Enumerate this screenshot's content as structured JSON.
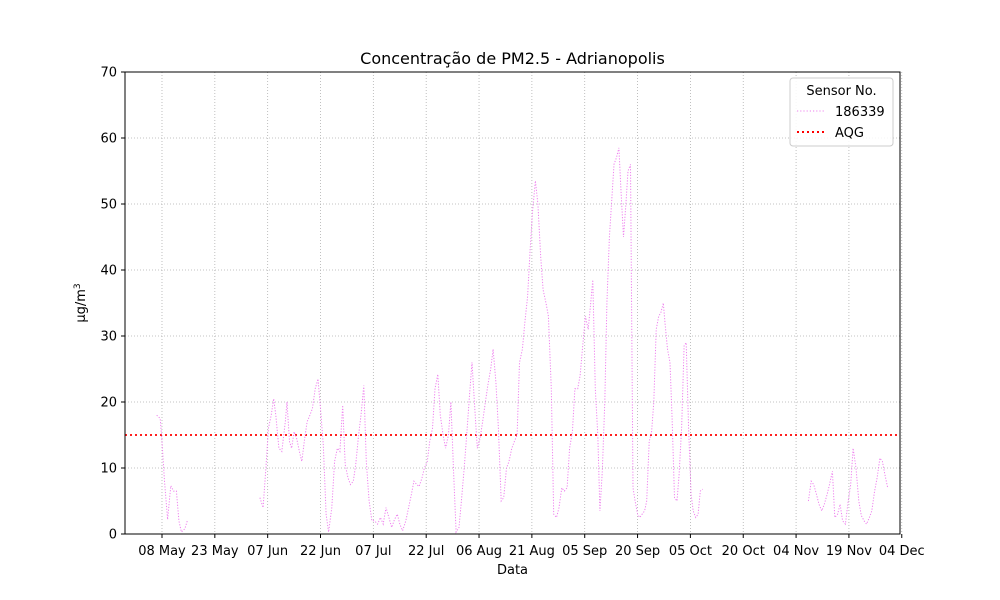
{
  "chart_data": {
    "type": "line",
    "title": "Concentração de PM2.5 - Adrianopolis",
    "xlabel": "Data",
    "ylabel": "μg/m",
    "ylabel_superscript": "3",
    "ylim": [
      0,
      70
    ],
    "xlim_days": [
      -10.5,
      209.5
    ],
    "y_ticks": [
      0,
      10,
      20,
      30,
      40,
      50,
      60,
      70
    ],
    "x_ticks": [
      {
        "day": 0,
        "label": "08 May"
      },
      {
        "day": 15,
        "label": "23 May"
      },
      {
        "day": 30,
        "label": "07 Jun"
      },
      {
        "day": 45,
        "label": "22 Jun"
      },
      {
        "day": 60,
        "label": "07 Jul"
      },
      {
        "day": 75,
        "label": "22 Jul"
      },
      {
        "day": 90,
        "label": "06 Aug"
      },
      {
        "day": 105,
        "label": "21 Aug"
      },
      {
        "day": 120,
        "label": "05 Sep"
      },
      {
        "day": 135,
        "label": "20 Sep"
      },
      {
        "day": 150,
        "label": "05 Oct"
      },
      {
        "day": 165,
        "label": "20 Oct"
      },
      {
        "day": 180,
        "label": "04 Nov"
      },
      {
        "day": 195,
        "label": "19 Nov"
      },
      {
        "day": 210,
        "label": "04 Dec"
      }
    ],
    "grid": true,
    "legend": {
      "title": "Sensor No.",
      "placement": "top-right",
      "entries": [
        {
          "label": "186339",
          "color": "#ee82ee",
          "style": "dotted"
        },
        {
          "label": "AQG",
          "color": "#ff0000",
          "style": "dotted"
        }
      ]
    },
    "reference_line": {
      "name": "AQG",
      "y": 15,
      "color": "#ff0000"
    },
    "series": [
      {
        "name": "186339",
        "color": "#ee82ee",
        "segments": [
          [
            [
              -1.5,
              18
            ],
            [
              -0.5,
              17.5
            ],
            [
              0,
              14
            ],
            [
              0.7,
              8
            ],
            [
              1.6,
              2.2
            ],
            [
              2.5,
              7.3
            ],
            [
              3.3,
              6.5
            ],
            [
              4.1,
              6.5
            ],
            [
              4.8,
              2
            ],
            [
              5.5,
              0.3
            ],
            [
              6.5,
              0.8
            ],
            [
              7.3,
              2.2
            ]
          ],
          [
            [
              27.8,
              5.5
            ],
            [
              28.7,
              4
            ],
            [
              29.5,
              10
            ],
            [
              30.2,
              16
            ],
            [
              31,
              18
            ],
            [
              31.7,
              20.5
            ],
            [
              32.3,
              18
            ],
            [
              33.2,
              13
            ],
            [
              34,
              12.5
            ],
            [
              35,
              17
            ],
            [
              35.5,
              20
            ],
            [
              36.2,
              14
            ],
            [
              36.8,
              13
            ],
            [
              37.5,
              15.5
            ],
            [
              38.2,
              14.5
            ],
            [
              39,
              12.5
            ],
            [
              39.7,
              11
            ],
            [
              40.5,
              14.5
            ],
            [
              41.2,
              17
            ],
            [
              42,
              18
            ],
            [
              42.7,
              19
            ],
            [
              43.5,
              22
            ],
            [
              44.3,
              23.5
            ],
            [
              45,
              19
            ],
            [
              45.8,
              13.5
            ],
            [
              46.6,
              3
            ],
            [
              47.3,
              0.3
            ],
            [
              48.2,
              4
            ],
            [
              49,
              11
            ],
            [
              49.8,
              13
            ],
            [
              50.5,
              12.5
            ],
            [
              51.3,
              19.5
            ],
            [
              52,
              10.5
            ],
            [
              52.8,
              8.5
            ],
            [
              53.5,
              7.5
            ],
            [
              54.3,
              8
            ],
            [
              55,
              10.5
            ],
            [
              55.8,
              15
            ],
            [
              56.5,
              18
            ],
            [
              57.3,
              22.5
            ],
            [
              58,
              11
            ],
            [
              58.8,
              5
            ],
            [
              59.6,
              2
            ],
            [
              60.3,
              2
            ],
            [
              61.2,
              1.5
            ],
            [
              62,
              2.5
            ],
            [
              62.8,
              1.5
            ],
            [
              63.6,
              4
            ],
            [
              64.4,
              2.5
            ],
            [
              65.2,
              1
            ],
            [
              66,
              2.2
            ],
            [
              66.8,
              3
            ],
            [
              67.5,
              1.5
            ],
            [
              68.3,
              0.5
            ],
            [
              69.2,
              2
            ],
            [
              70,
              4
            ],
            [
              70.8,
              6
            ],
            [
              71.5,
              8
            ],
            [
              72.3,
              7.5
            ],
            [
              73,
              7.2
            ],
            [
              73.8,
              8.5
            ],
            [
              74.5,
              10
            ],
            [
              75.3,
              11
            ],
            [
              76,
              14
            ],
            [
              76.8,
              16
            ],
            [
              77.5,
              22
            ],
            [
              78.3,
              24.2
            ],
            [
              79,
              18
            ],
            [
              79.8,
              15
            ],
            [
              80.5,
              13
            ],
            [
              81.3,
              15
            ],
            [
              82,
              20
            ],
            [
              82.8,
              9
            ],
            [
              83.5,
              0.3
            ],
            [
              84.3,
              1
            ],
            [
              85,
              5
            ],
            [
              85.8,
              10
            ],
            [
              86.5,
              15
            ],
            [
              87.3,
              21
            ],
            [
              88,
              26
            ],
            [
              88.8,
              19
            ],
            [
              89.5,
              13
            ],
            [
              90.3,
              14.5
            ],
            [
              91,
              17
            ],
            [
              91.8,
              20
            ],
            [
              92.5,
              22.5
            ],
            [
              93.3,
              25
            ],
            [
              94,
              28
            ],
            [
              94.8,
              23
            ],
            [
              95.5,
              16
            ],
            [
              96.3,
              5
            ],
            [
              97,
              5.5
            ],
            [
              97.8,
              10
            ],
            [
              98.5,
              11
            ],
            [
              99.3,
              13
            ],
            [
              100,
              14
            ],
            [
              100.8,
              15
            ],
            [
              101.5,
              26
            ],
            [
              102.3,
              28
            ],
            [
              103,
              32
            ],
            [
              103.8,
              36
            ],
            [
              104.5,
              43
            ],
            [
              105.2,
              49
            ],
            [
              106,
              53.5
            ],
            [
              106.7,
              50
            ],
            [
              107.5,
              42
            ],
            [
              108.2,
              37
            ],
            [
              109,
              35
            ],
            [
              109.7,
              33
            ],
            [
              110.5,
              22
            ],
            [
              111.2,
              3
            ],
            [
              112,
              2.5
            ],
            [
              112.7,
              4
            ],
            [
              113.5,
              7
            ],
            [
              114.2,
              6.5
            ],
            [
              115,
              7
            ],
            [
              115.7,
              13
            ],
            [
              116.5,
              15.5
            ],
            [
              117.2,
              22
            ],
            [
              118,
              22
            ],
            [
              118.7,
              24
            ],
            [
              119.5,
              29
            ],
            [
              120.2,
              33
            ],
            [
              121,
              31
            ],
            [
              121.7,
              35
            ],
            [
              122.3,
              38.5
            ],
            [
              123,
              22
            ],
            [
              123.7,
              15
            ],
            [
              124.3,
              3.5
            ],
            [
              125,
              9.5
            ],
            [
              125.7,
              20
            ],
            [
              126.3,
              35
            ],
            [
              127,
              45
            ],
            [
              127.6,
              50
            ],
            [
              128.3,
              56
            ],
            [
              129,
              57
            ],
            [
              129.7,
              58.5
            ],
            [
              130.3,
              52
            ],
            [
              131,
              45
            ],
            [
              131.7,
              50
            ],
            [
              132.3,
              55
            ],
            [
              133,
              56
            ],
            [
              133.7,
              7
            ],
            [
              134.3,
              5
            ],
            [
              135,
              3
            ],
            [
              135.6,
              2.5
            ],
            [
              136.3,
              3
            ],
            [
              137,
              3.5
            ],
            [
              137.6,
              5
            ],
            [
              138.3,
              14
            ],
            [
              139,
              15.5
            ],
            [
              139.6,
              20
            ],
            [
              140.3,
              31
            ],
            [
              141,
              33
            ],
            [
              141.6,
              33.5
            ],
            [
              142.3,
              35
            ],
            [
              142.8,
              32
            ],
            [
              143.5,
              28
            ],
            [
              144.2,
              26
            ],
            [
              144.8,
              17.5
            ],
            [
              145.5,
              5.5
            ],
            [
              146.2,
              5
            ],
            [
              146.8,
              9
            ],
            [
              147.5,
              16
            ],
            [
              148.2,
              28.5
            ],
            [
              148.8,
              29
            ],
            [
              149.5,
              16
            ],
            [
              150.2,
              6
            ],
            [
              150.8,
              3.5
            ],
            [
              151.5,
              2.5
            ],
            [
              152.2,
              3
            ],
            [
              152.8,
              6.5
            ],
            [
              153.5,
              6.8
            ]
          ],
          [
            [
              183.5,
              5
            ],
            [
              184.3,
              8
            ],
            [
              185,
              7.5
            ],
            [
              185.8,
              6
            ],
            [
              186.5,
              4.5
            ],
            [
              187.3,
              3.5
            ],
            [
              188,
              4.5
            ],
            [
              188.8,
              6
            ],
            [
              189.5,
              7.5
            ],
            [
              190.3,
              9.5
            ],
            [
              191,
              2.5
            ],
            [
              191.8,
              3
            ],
            [
              192.5,
              4.5
            ],
            [
              193.2,
              2
            ],
            [
              194,
              1.5
            ],
            [
              194.8,
              5
            ],
            [
              195.5,
              7.5
            ],
            [
              196.2,
              13
            ],
            [
              197,
              10
            ],
            [
              197.8,
              5
            ],
            [
              198.5,
              2.8
            ],
            [
              199.3,
              2
            ],
            [
              200,
              1.5
            ],
            [
              200.8,
              2.5
            ],
            [
              201.5,
              3.5
            ],
            [
              202.3,
              6.5
            ],
            [
              203,
              8.5
            ],
            [
              203.8,
              11.5
            ],
            [
              204.5,
              11
            ],
            [
              205.2,
              9
            ],
            [
              206,
              7
            ]
          ]
        ]
      }
    ]
  }
}
